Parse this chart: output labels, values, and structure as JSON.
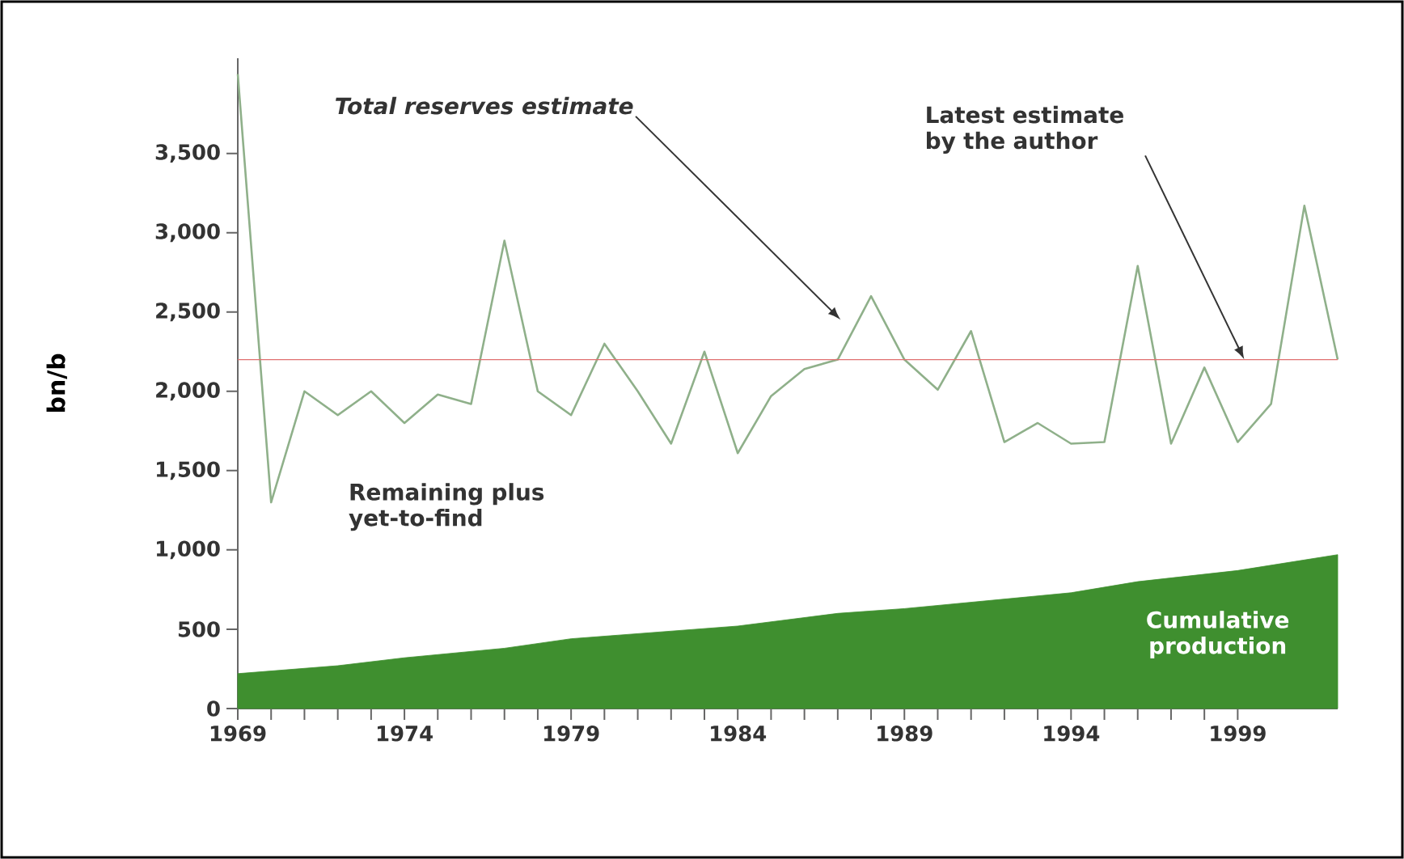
{
  "chart_data": {
    "type": "line",
    "ylabel": "bn/b",
    "xlim": [
      1969,
      2002
    ],
    "xticks": [
      1969,
      1974,
      1979,
      1984,
      1989,
      1994,
      1999
    ],
    "ylim": [
      0,
      4100
    ],
    "yticks": [
      {
        "value": 0,
        "label": "0"
      },
      {
        "value": 500,
        "label": "500"
      },
      {
        "value": 1000,
        "label": "1,000"
      },
      {
        "value": 1500,
        "label": "1,500"
      },
      {
        "value": 2000,
        "label": "2,000"
      },
      {
        "value": 2500,
        "label": "2,500"
      },
      {
        "value": 3000,
        "label": "3,000"
      },
      {
        "value": 3500,
        "label": "3,500"
      }
    ],
    "grid": false,
    "legend": false,
    "marker": "none",
    "line_style": "solid",
    "series": [
      {
        "type": "area",
        "name": "Cumulative production",
        "color": "#3f8f2f",
        "x": [
          1969,
          1972,
          1974,
          1977,
          1979,
          1984,
          1987,
          1989,
          1994,
          1996,
          1999,
          2002
        ],
        "values": [
          220,
          270,
          320,
          380,
          440,
          520,
          600,
          630,
          730,
          800,
          870,
          970
        ]
      },
      {
        "type": "line",
        "color": "#8fb08a",
        "x": [
          1969,
          1970,
          1971,
          1972,
          1973,
          1974,
          1975,
          1976,
          1977,
          1978,
          1979,
          1980,
          1981,
          1982,
          1983,
          1984,
          1985,
          1986,
          1987,
          1988,
          1989,
          1990,
          1991,
          1992,
          1993,
          1994,
          1995,
          1996,
          1997,
          1998,
          1999,
          2000,
          2001,
          2002
        ],
        "values": [
          4000,
          1300,
          2000,
          1850,
          2000,
          1800,
          1980,
          1920,
          2950,
          2000,
          1850,
          2300,
          2000,
          1670,
          2250,
          1610,
          1970,
          2140,
          2200,
          2600,
          2200,
          2010,
          2380,
          1680,
          1800,
          1670,
          1680,
          2790,
          1670,
          2150,
          1680,
          1920,
          3170,
          2200
        ]
      }
    ],
    "ref_lines": [
      {
        "axis": "y",
        "value": 2200,
        "color": "#e07070"
      }
    ],
    "annotations": [
      "*Total reserves estimate*",
      "Latest estimate by the author",
      "Remaining plus yet-to-find"
    ]
  }
}
